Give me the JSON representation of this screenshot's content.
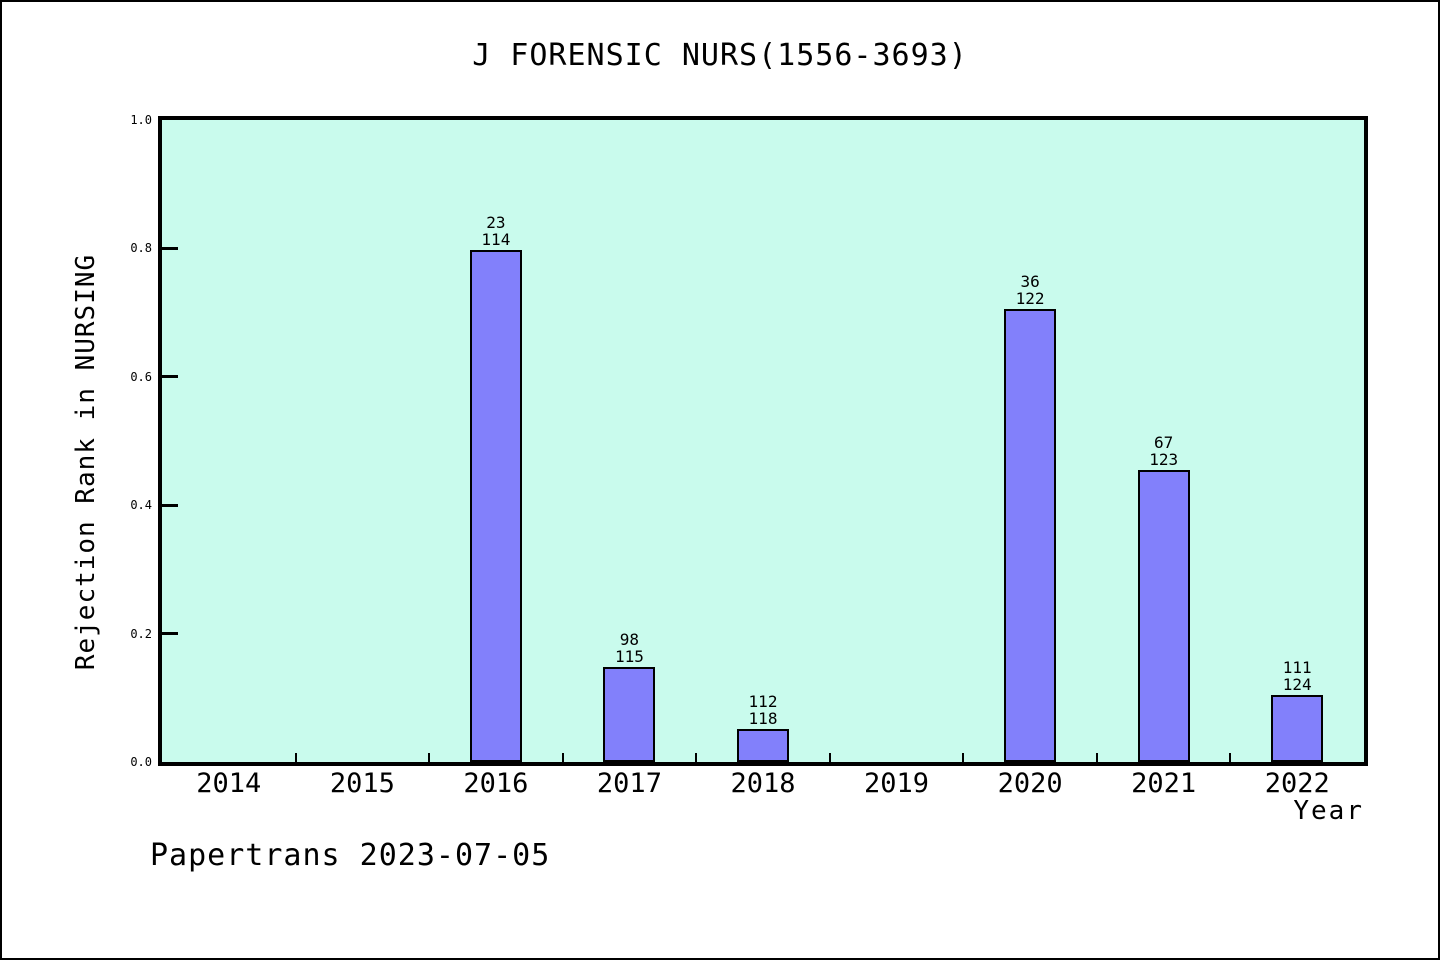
{
  "watermark": "Papertrans 2023-07-05",
  "chart_data": {
    "type": "bar",
    "title": "J FORENSIC NURS(1556-3693)",
    "xlabel": "Year",
    "ylabel": "Rejection Rank in NURSING",
    "categories": [
      "2014",
      "2015",
      "2016",
      "2017",
      "2018",
      "2019",
      "2020",
      "2021",
      "2022"
    ],
    "values": [
      null,
      null,
      0.798,
      0.148,
      0.051,
      null,
      0.705,
      0.455,
      0.105
    ],
    "bar_annotations": [
      null,
      null,
      {
        "rank": "23",
        "total": "114"
      },
      {
        "rank": "98",
        "total": "115"
      },
      {
        "rank": "112",
        "total": "118"
      },
      null,
      {
        "rank": "36",
        "total": "122"
      },
      {
        "rank": "67",
        "total": "123"
      },
      {
        "rank": "111",
        "total": "124"
      }
    ],
    "ylim": [
      0,
      1
    ],
    "yticks": [
      0.0,
      0.2,
      0.4,
      0.6,
      0.8,
      1.0
    ],
    "ytick_labels": [
      "0.0",
      "0.2",
      "0.4",
      "0.6",
      "0.8",
      "1.0"
    ],
    "grid": false,
    "legend": null,
    "colors": {
      "bar_fill": "#8280fb",
      "bar_edge": "#000000",
      "plot_background": "#c9fbed",
      "figure_background": "#ffffff",
      "text": "#000000"
    }
  }
}
